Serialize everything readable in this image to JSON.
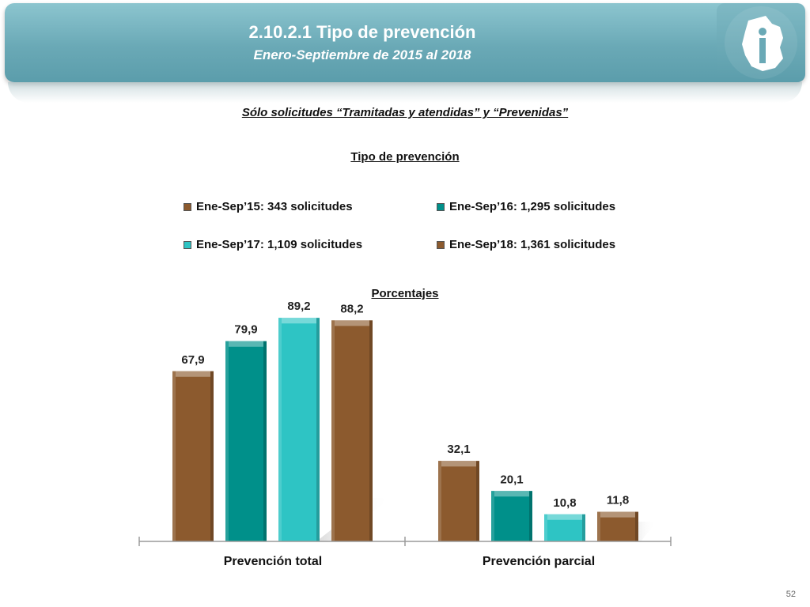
{
  "header": {
    "title": "2.10.2.1 Tipo de prevención",
    "subtitle": "Enero-Septiembre de 2015 al 2018"
  },
  "headings": {
    "scope": "Sólo solicitudes “Tramitadas y atendidas” y “Prevenidas”",
    "chart_title": "Tipo de prevención",
    "units": "Porcentajes"
  },
  "page_number": "52",
  "logo": {
    "icon": "city-map-info-logo"
  },
  "colors": {
    "brown": "#8c5a2e",
    "teal": "#00908a",
    "cyan": "#2ec4c4",
    "header": "#6aa9b6"
  },
  "chart_data": {
    "type": "bar",
    "title": "Tipo de prevención",
    "ylabel": "",
    "xlabel": "",
    "ylim": [
      0,
      100
    ],
    "grid": false,
    "legend_position": "top",
    "categories": [
      "Prevención total",
      "Prevención parcial"
    ],
    "series": [
      {
        "name": "Ene-Sep’15: 343 solicitudes",
        "color": "#8c5a2e",
        "values": [
          67.9,
          32.1
        ],
        "labels": [
          "67,9",
          "32,1"
        ]
      },
      {
        "name": "Ene-Sep’16: 1,295 solicitudes",
        "color": "#00908a",
        "values": [
          79.9,
          20.1
        ],
        "labels": [
          "79,9",
          "20,1"
        ]
      },
      {
        "name": "Ene-Sep’17: 1,109 solicitudes",
        "color": "#2ec4c4",
        "values": [
          89.2,
          10.8
        ],
        "labels": [
          "89,2",
          "10,8"
        ]
      },
      {
        "name": "Ene-Sep’18: 1,361 solicitudes",
        "color": "#8c5a2e",
        "values": [
          88.2,
          11.8
        ],
        "labels": [
          "88,2",
          "11,8"
        ]
      }
    ]
  }
}
